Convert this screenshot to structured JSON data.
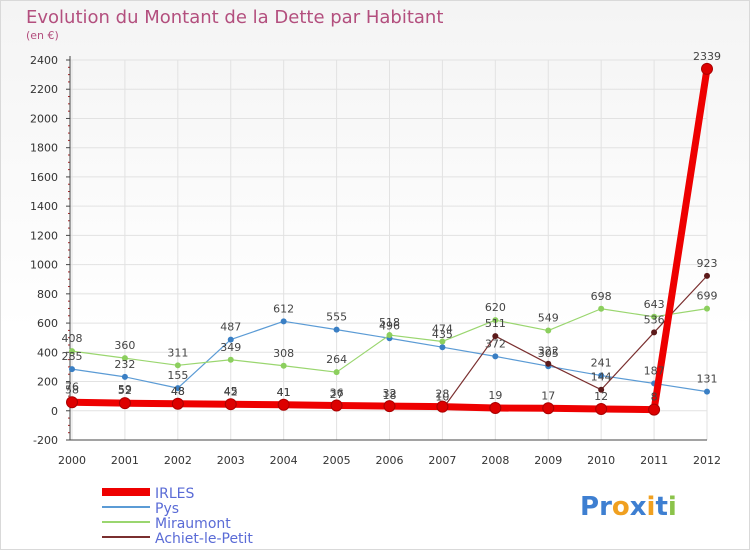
{
  "colors": {
    "title": "#b34f7e",
    "legend_text": "#5a6bd6",
    "grid": "#e2e2e2",
    "axis": "#444444"
  },
  "logo": {
    "text": "Proxiti",
    "letters": [
      "P",
      "r",
      "o",
      "x",
      "i",
      "t",
      "i"
    ],
    "letter_colors": [
      "#3e7fd1",
      "#3e7fd1",
      "#f0a020",
      "#3e7fd1",
      "#f0a020",
      "#3e7fd1",
      "#8bc34a"
    ]
  },
  "chart_data": {
    "type": "line",
    "title": "Evolution du Montant de la Dette par Habitant",
    "subtitle": "(en €)",
    "xlabel": "",
    "ylabel": "",
    "x": [
      "2000",
      "2001",
      "2002",
      "2003",
      "2004",
      "2005",
      "2006",
      "2007",
      "2008",
      "2009",
      "2010",
      "2011",
      "2012"
    ],
    "ylim": [
      -200,
      2400
    ],
    "yticks": [
      "-200",
      "0",
      "200",
      "400",
      "600",
      "800",
      "1000",
      "1200",
      "1400",
      "1600",
      "1800",
      "2000",
      "2200",
      "2400"
    ],
    "grid": true,
    "legend_position": "bottom-left",
    "series": [
      {
        "name": "Pys",
        "color": "#5b9bd5",
        "width": 1.2,
        "marker_fill": "#3a7fc4",
        "values": [
          285,
          232,
          155,
          487,
          612,
          555,
          496,
          435,
          372,
          305,
          241,
          187,
          131
        ],
        "labels": [
          "285",
          "232",
          "155",
          "487",
          "612",
          "555",
          "496",
          "435",
          "372",
          "305",
          "241",
          "187",
          "131"
        ]
      },
      {
        "name": "Miraumont",
        "color": "#9ad66f",
        "width": 1.2,
        "marker_fill": "#8ccf5e",
        "values": [
          408,
          360,
          311,
          349,
          308,
          264,
          518,
          474,
          620,
          549,
          698,
          643,
          699
        ],
        "labels": [
          "408",
          "360",
          "311",
          "349",
          "308",
          "264",
          "518",
          "474",
          "620",
          "549",
          "698",
          "643",
          "699"
        ]
      },
      {
        "name": "Achiet-le-Petit",
        "color": "#7a2f2f",
        "width": 1.2,
        "marker_fill": "#5c1a1a",
        "values": [
          76,
          59,
          48,
          42,
          41,
          27,
          18,
          10,
          511,
          322,
          144,
          536,
          923
        ],
        "labels": [
          "76",
          "59",
          "48",
          "42",
          "41",
          "27",
          "18",
          "10",
          "511",
          "322",
          "144",
          "536",
          "923"
        ]
      },
      {
        "name": "IRLES",
        "color": "#ee0000",
        "width": 7,
        "marker_fill": "#dd0000",
        "values": [
          58,
          52,
          48,
          45,
          41,
          36,
          32,
          28,
          19,
          17,
          12,
          8,
          2339
        ],
        "labels": [
          "58",
          "52",
          "48",
          "45",
          "41",
          "36",
          "32",
          "28",
          "19",
          "17",
          "12",
          "8",
          "2339"
        ]
      }
    ]
  }
}
